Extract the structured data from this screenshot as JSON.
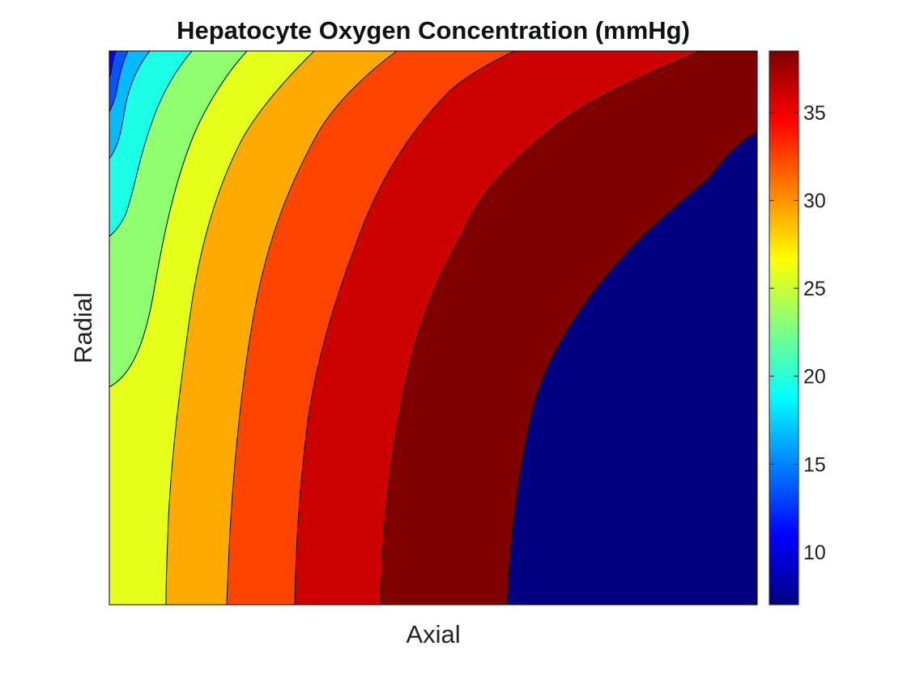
{
  "chart_data": {
    "type": "contour",
    "title": "Hepatocyte Oxygen Concentration (mmHg)",
    "xlabel": "Axial",
    "ylabel": "Radial",
    "x_ticks": [],
    "y_ticks": [],
    "colormap": "jet",
    "colorbar": {
      "range": [
        7,
        38.5
      ],
      "ticks": [
        10,
        15,
        20,
        25,
        30,
        35
      ],
      "tick_labels": [
        "10",
        "15",
        "20",
        "25",
        "30",
        "35"
      ]
    },
    "contour_levels": [
      {
        "value": 38.5,
        "color": "#800000"
      },
      {
        "value": 36.5,
        "color": "#cc0000"
      },
      {
        "value": 32.5,
        "color": "#ff4400"
      },
      {
        "value": 28.5,
        "color": "#ffaa00"
      },
      {
        "value": 24.5,
        "color": "#e6ff1a"
      },
      {
        "value": 20.5,
        "color": "#8fff70"
      },
      {
        "value": 16.5,
        "color": "#1affe6"
      },
      {
        "value": 12.5,
        "color": "#00bbff"
      },
      {
        "value": 9.5,
        "color": "#0055ff"
      },
      {
        "value": 7.5,
        "color": "#0000ee"
      },
      {
        "value": 7.0,
        "color": "#000080"
      }
    ]
  }
}
